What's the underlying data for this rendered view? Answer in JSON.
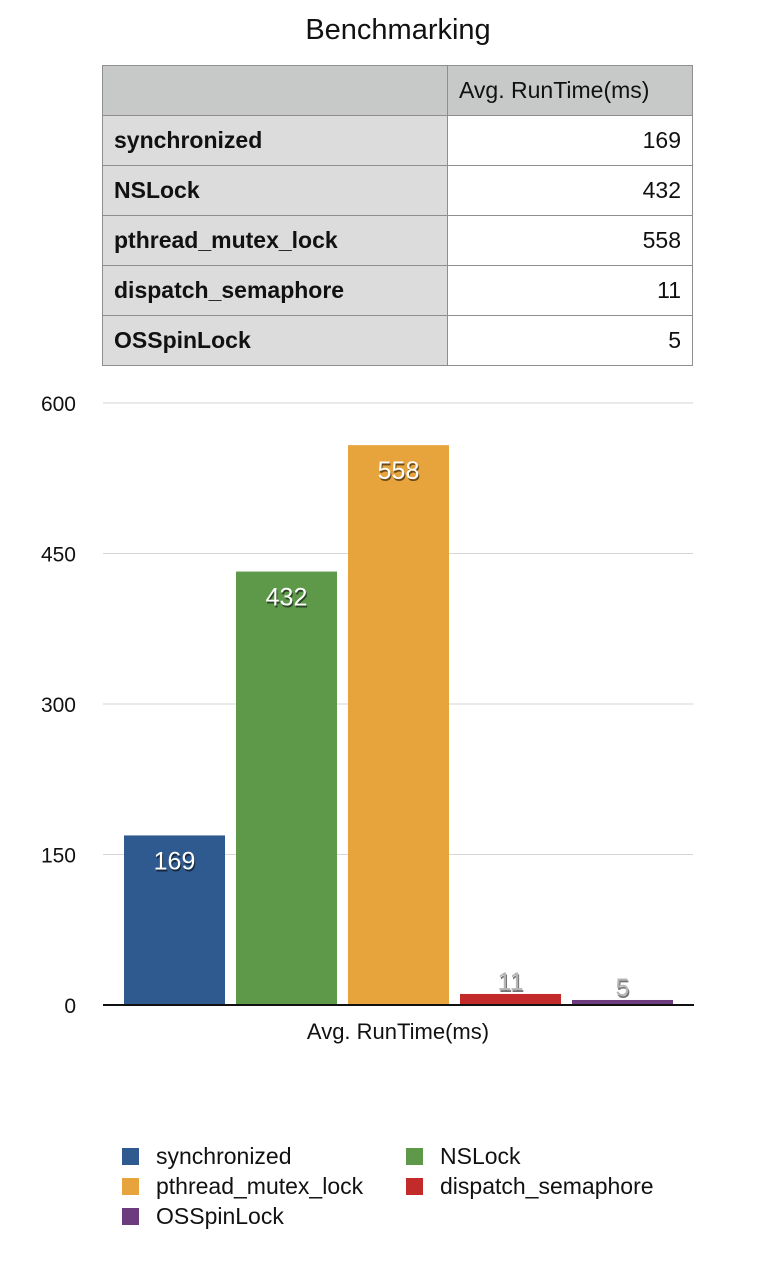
{
  "title": "Benchmarking",
  "table": {
    "header": "Avg. RunTime(ms)",
    "rows": [
      {
        "name": "synchronized",
        "value": "169"
      },
      {
        "name": "NSLock",
        "value": "432"
      },
      {
        "name": "pthread_mutex_lock",
        "value": "558"
      },
      {
        "name": "dispatch_semaphore",
        "value": "11"
      },
      {
        "name": "OSSpinLock",
        "value": "5"
      }
    ]
  },
  "chart_data": {
    "type": "bar",
    "title": "Benchmarking",
    "xlabel": "Avg. RunTime(ms)",
    "ylabel": "",
    "categories": [
      "Avg. RunTime(ms)"
    ],
    "series": [
      {
        "name": "synchronized",
        "values": [
          169
        ],
        "color": "#2f5a8f"
      },
      {
        "name": "NSLock",
        "values": [
          432
        ],
        "color": "#5e994a"
      },
      {
        "name": "pthread_mutex_lock",
        "values": [
          558
        ],
        "color": "#e7a43c"
      },
      {
        "name": "dispatch_semaphore",
        "values": [
          11
        ],
        "color": "#c32b2b"
      },
      {
        "name": "OSSpinLock",
        "values": [
          5
        ],
        "color": "#6c3c7e"
      }
    ],
    "ylim": [
      0,
      600
    ],
    "yticks": [
      0,
      150,
      300,
      450,
      600
    ],
    "grid": true,
    "data_labels": true,
    "legend": "bottom"
  }
}
